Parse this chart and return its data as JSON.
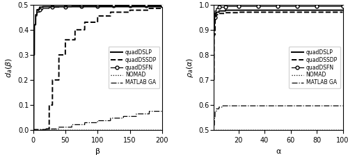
{
  "left": {
    "xlabel": "β",
    "ylabel": "$d_a(\\beta)$",
    "xlim": [
      0,
      200
    ],
    "ylim": [
      0,
      0.5
    ],
    "yticks": [
      0,
      0.1,
      0.2,
      0.3,
      0.4,
      0.5
    ],
    "xticks": [
      0,
      50,
      100,
      150,
      200
    ]
  },
  "right": {
    "xlabel": "α",
    "ylabel": "$\\rho_a(\\alpha)$",
    "xlim": [
      1,
      100
    ],
    "ylim": [
      0.5,
      1.0
    ],
    "yticks": [
      0.5,
      0.6,
      0.7,
      0.8,
      0.9,
      1.0
    ],
    "xticks": [
      20,
      40,
      60,
      80,
      100
    ]
  },
  "legend_labels": [
    "quadDSLP",
    "quadDSSDP",
    "quadDSFN",
    "NOMAD",
    "MATLAB GA"
  ],
  "sfn_marker_beta": [
    10,
    30,
    50,
    75,
    100,
    125,
    150,
    175,
    200
  ],
  "sfn_marker_alpha": [
    2,
    5,
    10,
    20,
    35,
    50,
    65,
    80,
    100
  ]
}
